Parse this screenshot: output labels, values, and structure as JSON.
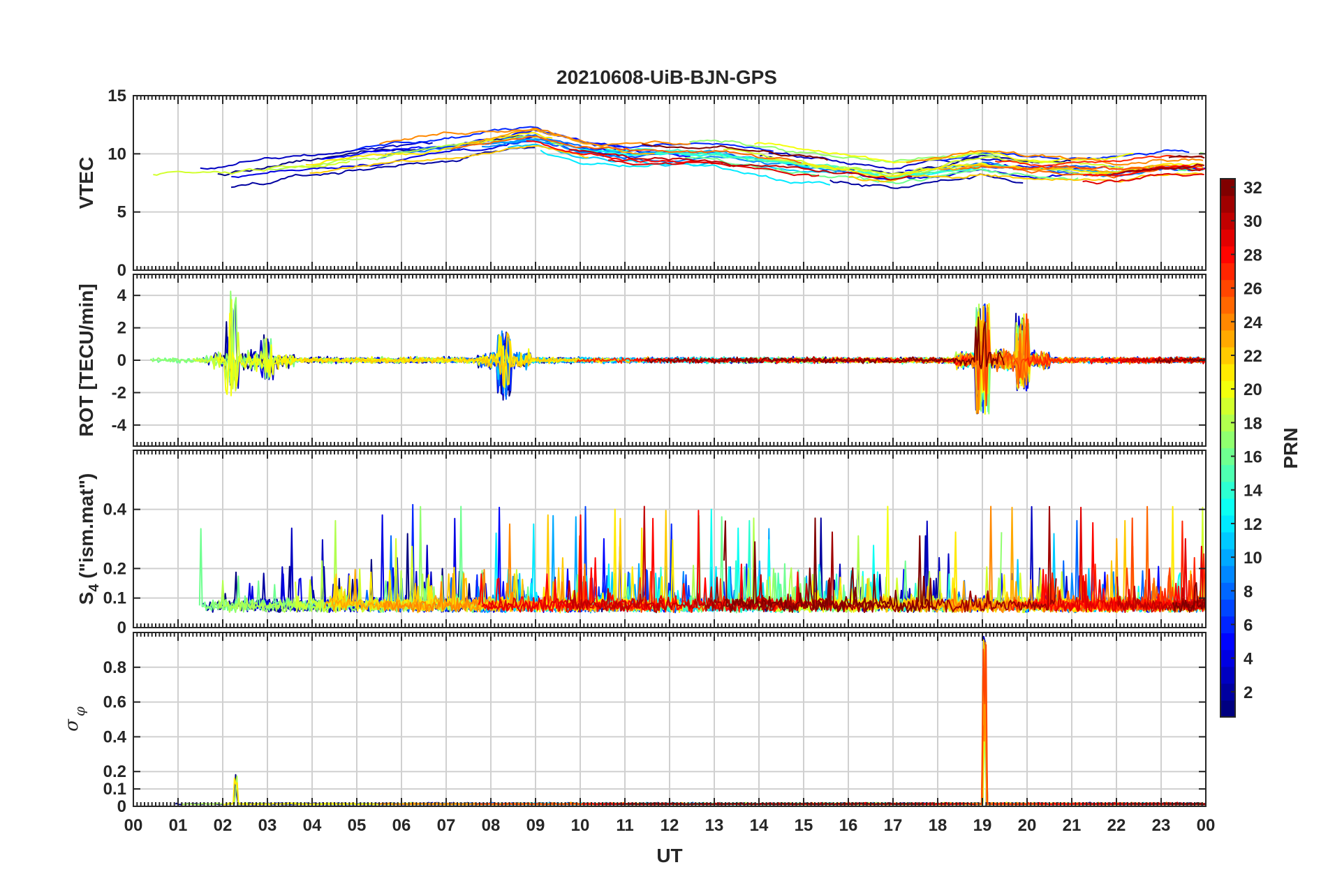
{
  "chart_data": {
    "type": "line",
    "title": "20210608-UiB-BJN-GPS",
    "xlabel": "UT",
    "x_range_hours": [
      0,
      24
    ],
    "x_tick_labels": [
      "00",
      "01",
      "02",
      "03",
      "04",
      "05",
      "06",
      "07",
      "08",
      "09",
      "10",
      "11",
      "12",
      "13",
      "14",
      "15",
      "16",
      "17",
      "18",
      "19",
      "20",
      "21",
      "22",
      "23",
      "00"
    ],
    "series_key": "PRN",
    "series_ids": [
      1,
      2,
      3,
      4,
      5,
      6,
      7,
      8,
      9,
      10,
      11,
      12,
      13,
      14,
      15,
      16,
      17,
      18,
      19,
      20,
      21,
      22,
      23,
      24,
      25,
      26,
      27,
      28,
      29,
      30,
      31,
      32
    ],
    "panels": [
      {
        "name": "vtec",
        "ylabel": "VTEC",
        "ylim": [
          0,
          15
        ],
        "yticks": [
          0,
          5,
          10,
          15
        ],
        "ytick_labels": [
          "0",
          "5",
          "10",
          "15"
        ],
        "grid": true,
        "approx_profile": {
          "hours": [
            0,
            1,
            2,
            3,
            4,
            5,
            6,
            7,
            8,
            9,
            10,
            11,
            12,
            13,
            14,
            15,
            16,
            17,
            18,
            19,
            20,
            21,
            22,
            23,
            24
          ],
          "values": [
            7.5,
            8,
            8,
            8.5,
            9,
            9.5,
            10,
            10.5,
            11,
            11.5,
            10.5,
            10,
            10,
            10,
            9.5,
            9,
            8.5,
            8,
            8.5,
            9,
            8.5,
            8.5,
            8.5,
            9,
            9
          ]
        }
      },
      {
        "name": "rot",
        "ylabel": "ROT [TECU/min]",
        "ylim": [
          -5.3,
          5.3
        ],
        "yticks": [
          -4,
          -2,
          0,
          2,
          4
        ],
        "ytick_labels": [
          "-4",
          "-2",
          "0",
          "2",
          "4"
        ],
        "grid": true,
        "bursts": [
          {
            "hour": 2.2,
            "max": 4.4,
            "min": -2.2
          },
          {
            "hour": 3.0,
            "max": 1.6,
            "min": -1.2
          },
          {
            "hour": 8.3,
            "max": 1.8,
            "min": -2.6
          },
          {
            "hour": 19.0,
            "max": 3.5,
            "min": -3.4
          },
          {
            "hour": 19.9,
            "max": 3.0,
            "min": -1.9
          }
        ]
      },
      {
        "name": "s4",
        "ylabel": "S4 (\"ism.mat\")",
        "ylabel_base": "S",
        "ylabel_sub": "4",
        "ylabel_rest": " (\"ism.mat\")",
        "ylim": [
          0,
          0.6
        ],
        "yticks": [
          0,
          0.1,
          0.2,
          0.4
        ],
        "ytick_labels": [
          "0",
          "0.1",
          "0.2",
          "0.4"
        ],
        "grid": true,
        "baseline_range": [
          0.05,
          0.12
        ],
        "peak_max": 0.44
      },
      {
        "name": "sigma_phi",
        "ylabel": "σ φ",
        "ylabel_base": "σ",
        "ylabel_sub": "φ",
        "ylim": [
          0,
          1.0
        ],
        "yticks": [
          0,
          0.1,
          0.2,
          0.4,
          0.6,
          0.8
        ],
        "ytick_labels": [
          "0",
          "0.1",
          "0.2",
          "0.4",
          "0.6",
          "0.8"
        ],
        "grid": true,
        "spikes": [
          {
            "hour": 2.3,
            "value": 0.2
          },
          {
            "hour": 19.05,
            "value": 1.0
          }
        ]
      }
    ],
    "colorbar": {
      "label": "PRN",
      "colormap": "jet",
      "range": [
        1,
        32
      ],
      "ticks": [
        2,
        4,
        6,
        8,
        10,
        12,
        14,
        16,
        18,
        20,
        22,
        24,
        26,
        28,
        30,
        32
      ],
      "tick_labels": [
        "2",
        "4",
        "6",
        "8",
        "10",
        "12",
        "14",
        "16",
        "18",
        "20",
        "22",
        "24",
        "26",
        "28",
        "30",
        "32"
      ]
    }
  }
}
